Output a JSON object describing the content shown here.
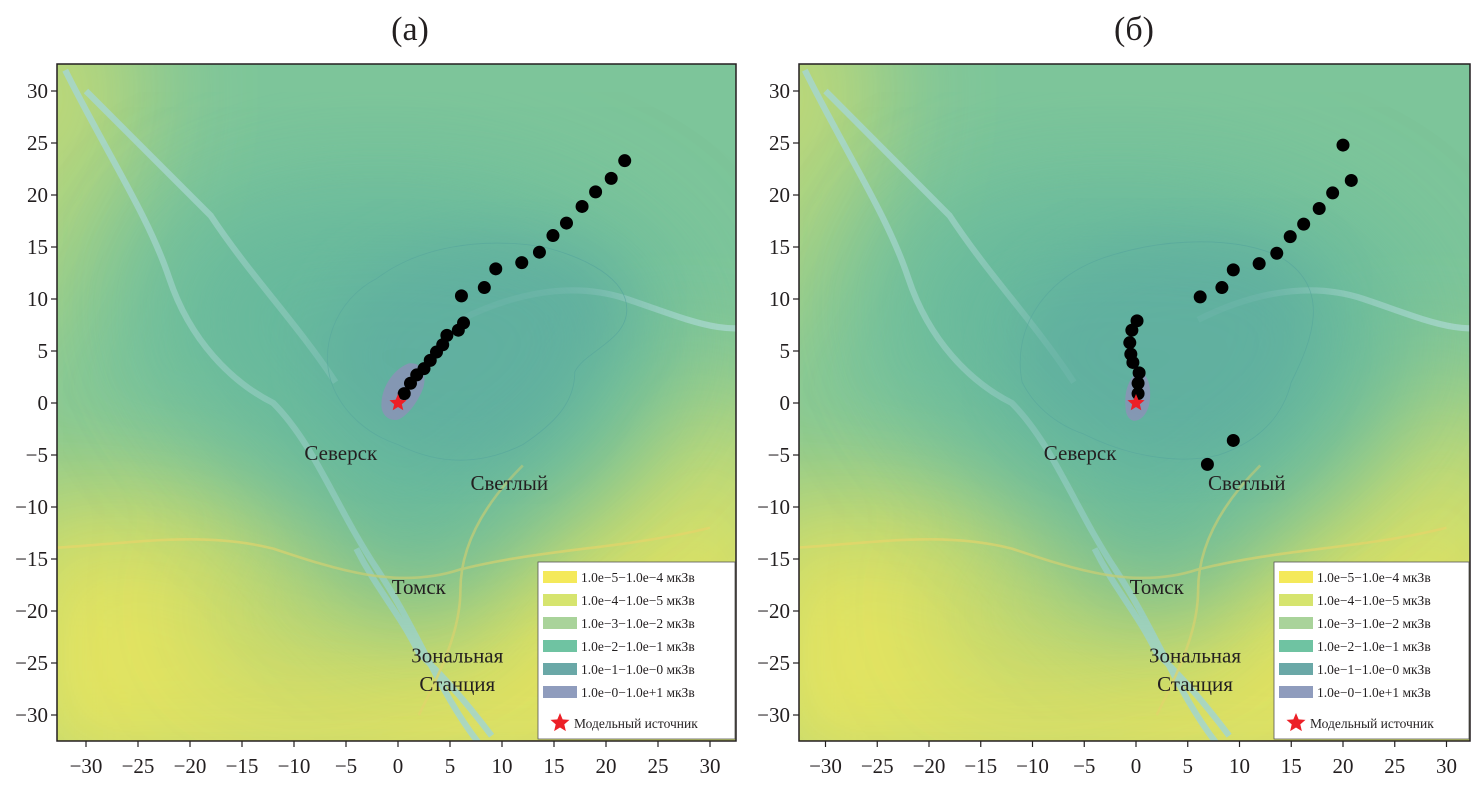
{
  "panels": [
    {
      "label": "(а)",
      "axis": {
        "x_ticks": [
          -30,
          -25,
          -20,
          -15,
          -10,
          -5,
          0,
          5,
          10,
          15,
          20,
          25,
          30
        ],
        "y_ticks": [
          -30,
          -25,
          -20,
          -15,
          -10,
          -5,
          0,
          5,
          10,
          15,
          20,
          25,
          30
        ],
        "xlim": [
          -32.5,
          32.5
        ],
        "ylim": [
          -32.5,
          32.5
        ]
      },
      "cities": [
        {
          "name": "Северск",
          "x": -5.5,
          "y": -4.8
        },
        {
          "name": "Светлый",
          "x": 10.7,
          "y": -7.7
        },
        {
          "name": "Томск",
          "x": 2.0,
          "y": -17.7
        },
        {
          "name": "Зональная",
          "x": 5.7,
          "y": -24.3
        },
        {
          "name": "Станция",
          "x": 5.7,
          "y": -27.0
        }
      ],
      "source": {
        "x": 0,
        "y": 0
      },
      "points": [
        [
          0.6,
          0.9
        ],
        [
          1.2,
          1.9
        ],
        [
          1.8,
          2.7
        ],
        [
          2.5,
          3.3
        ],
        [
          3.1,
          4.1
        ],
        [
          3.7,
          4.9
        ],
        [
          4.3,
          5.6
        ],
        [
          4.7,
          6.5
        ],
        [
          5.8,
          7.0
        ],
        [
          6.3,
          7.7
        ],
        [
          6.1,
          10.3
        ],
        [
          8.3,
          11.1
        ],
        [
          9.4,
          12.9
        ],
        [
          11.9,
          13.5
        ],
        [
          13.6,
          14.5
        ],
        [
          14.9,
          16.1
        ],
        [
          16.2,
          17.3
        ],
        [
          17.7,
          18.9
        ],
        [
          19.0,
          20.3
        ],
        [
          20.5,
          21.6
        ],
        [
          21.8,
          23.3
        ]
      ]
    },
    {
      "label": "(б)",
      "axis": {
        "x_ticks": [
          -30,
          -25,
          -20,
          -15,
          -10,
          -5,
          0,
          5,
          10,
          15,
          20,
          25,
          30
        ],
        "y_ticks": [
          -30,
          -25,
          -20,
          -15,
          -10,
          -5,
          0,
          5,
          10,
          15,
          20,
          25,
          30
        ],
        "xlim": [
          -32.5,
          32.5
        ],
        "ylim": [
          -32.5,
          32.5
        ]
      },
      "cities": [
        {
          "name": "Северск",
          "x": -5.4,
          "y": -4.8
        },
        {
          "name": "Светлый",
          "x": 10.7,
          "y": -7.7
        },
        {
          "name": "Томск",
          "x": 2.0,
          "y": -17.7
        },
        {
          "name": "Зональная",
          "x": 5.7,
          "y": -24.3
        },
        {
          "name": "Станция",
          "x": 5.7,
          "y": -27.0
        }
      ],
      "source": {
        "x": 0,
        "y": 0
      },
      "points": [
        [
          0.2,
          0.9
        ],
        [
          0.2,
          1.9
        ],
        [
          0.3,
          2.9
        ],
        [
          -0.3,
          3.9
        ],
        [
          -0.5,
          4.7
        ],
        [
          -0.6,
          5.8
        ],
        [
          -0.4,
          7.0
        ],
        [
          0.1,
          7.9
        ],
        [
          6.2,
          10.2
        ],
        [
          8.3,
          11.1
        ],
        [
          9.4,
          12.8
        ],
        [
          11.9,
          13.4
        ],
        [
          13.6,
          14.4
        ],
        [
          14.9,
          16.0
        ],
        [
          16.2,
          17.2
        ],
        [
          17.7,
          18.7
        ],
        [
          19.0,
          20.2
        ],
        [
          20.8,
          21.4
        ],
        [
          20.0,
          24.8
        ],
        [
          9.4,
          -3.6
        ],
        [
          6.9,
          -5.9
        ]
      ]
    }
  ],
  "legend": {
    "items": [
      {
        "label": "1.0e−5−1.0e−4 мкЗв",
        "color": "#f4e95a"
      },
      {
        "label": "1.0e−4−1.0e−5 мкЗв",
        "color": "#d6e46e"
      },
      {
        "label": "1.0e−3−1.0e−2 мкЗв",
        "color": "#a9d39a"
      },
      {
        "label": "1.0e−2−1.0e−1 мкЗв",
        "color": "#6fc3a2"
      },
      {
        "label": "1.0e−1−1.0e−0 мкЗв",
        "color": "#6aa8a7"
      },
      {
        "label": "1.0e−0−1.0e+1 мкЗв",
        "color": "#8f9cbd"
      }
    ],
    "source_label": "Модельный источник",
    "source_color": "#ec2027"
  },
  "colors": {
    "base_yellow": "#e6e45e",
    "base_green": "#7dc59a",
    "zone_cyan": "#5fb29e",
    "zone_inner": "#5d9eaa",
    "zone_core": "#8b93b6",
    "river": "#9dd3cf",
    "dot": "#000000",
    "star": "#ec2027"
  },
  "icons": {
    "source_marker": "red-star-icon",
    "point_marker": "black-dot"
  }
}
